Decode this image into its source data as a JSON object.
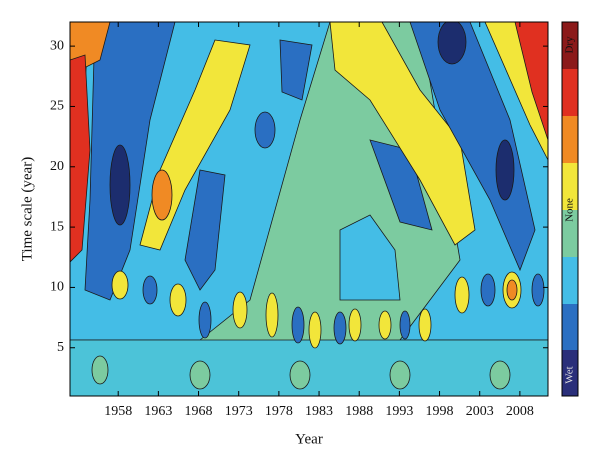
{
  "chart_data": {
    "type": "contour",
    "xlabel": "Year",
    "ylabel": "Time scale (year)",
    "xlim": [
      1952,
      2011.5
    ],
    "xticks": [
      1958,
      1963,
      1968,
      1973,
      1978,
      1983,
      1988,
      1993,
      1998,
      2003,
      2008
    ],
    "ylim": [
      1,
      32
    ],
    "yticks": [
      5,
      10,
      15,
      20,
      25,
      30
    ],
    "colorbar_labels": [
      "Dry",
      "None",
      "Wet"
    ]
  }
}
